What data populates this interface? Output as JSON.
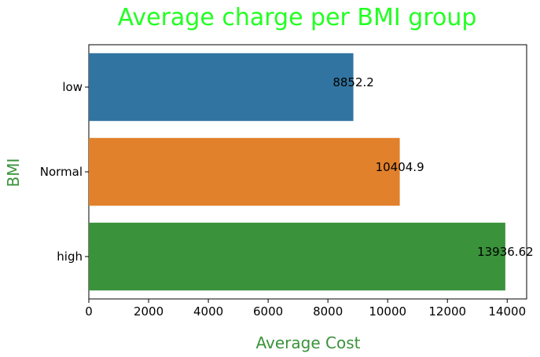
{
  "chart_data": {
    "type": "bar",
    "orientation": "horizontal",
    "title": "Average charge per BMI group",
    "xlabel": "Average Cost",
    "ylabel": "BMI",
    "categories": [
      "low",
      "Normal",
      "high"
    ],
    "values": [
      8852.2,
      10404.9,
      13936.62
    ],
    "value_labels": [
      "8852.2",
      "10404.9",
      "13936.62"
    ],
    "xlim": [
      0,
      14650
    ],
    "xticks": [
      0,
      2000,
      4000,
      6000,
      8000,
      10000,
      12000,
      14000
    ],
    "xtick_labels": [
      "0",
      "2000",
      "4000",
      "6000",
      "8000",
      "10000",
      "12000",
      "14000"
    ],
    "colors": [
      "#3274a1",
      "#e1812c",
      "#3a923a"
    ],
    "title_color": "#22ff22",
    "axis_label_color": "#3a923a",
    "grid": false,
    "legend": "none"
  }
}
